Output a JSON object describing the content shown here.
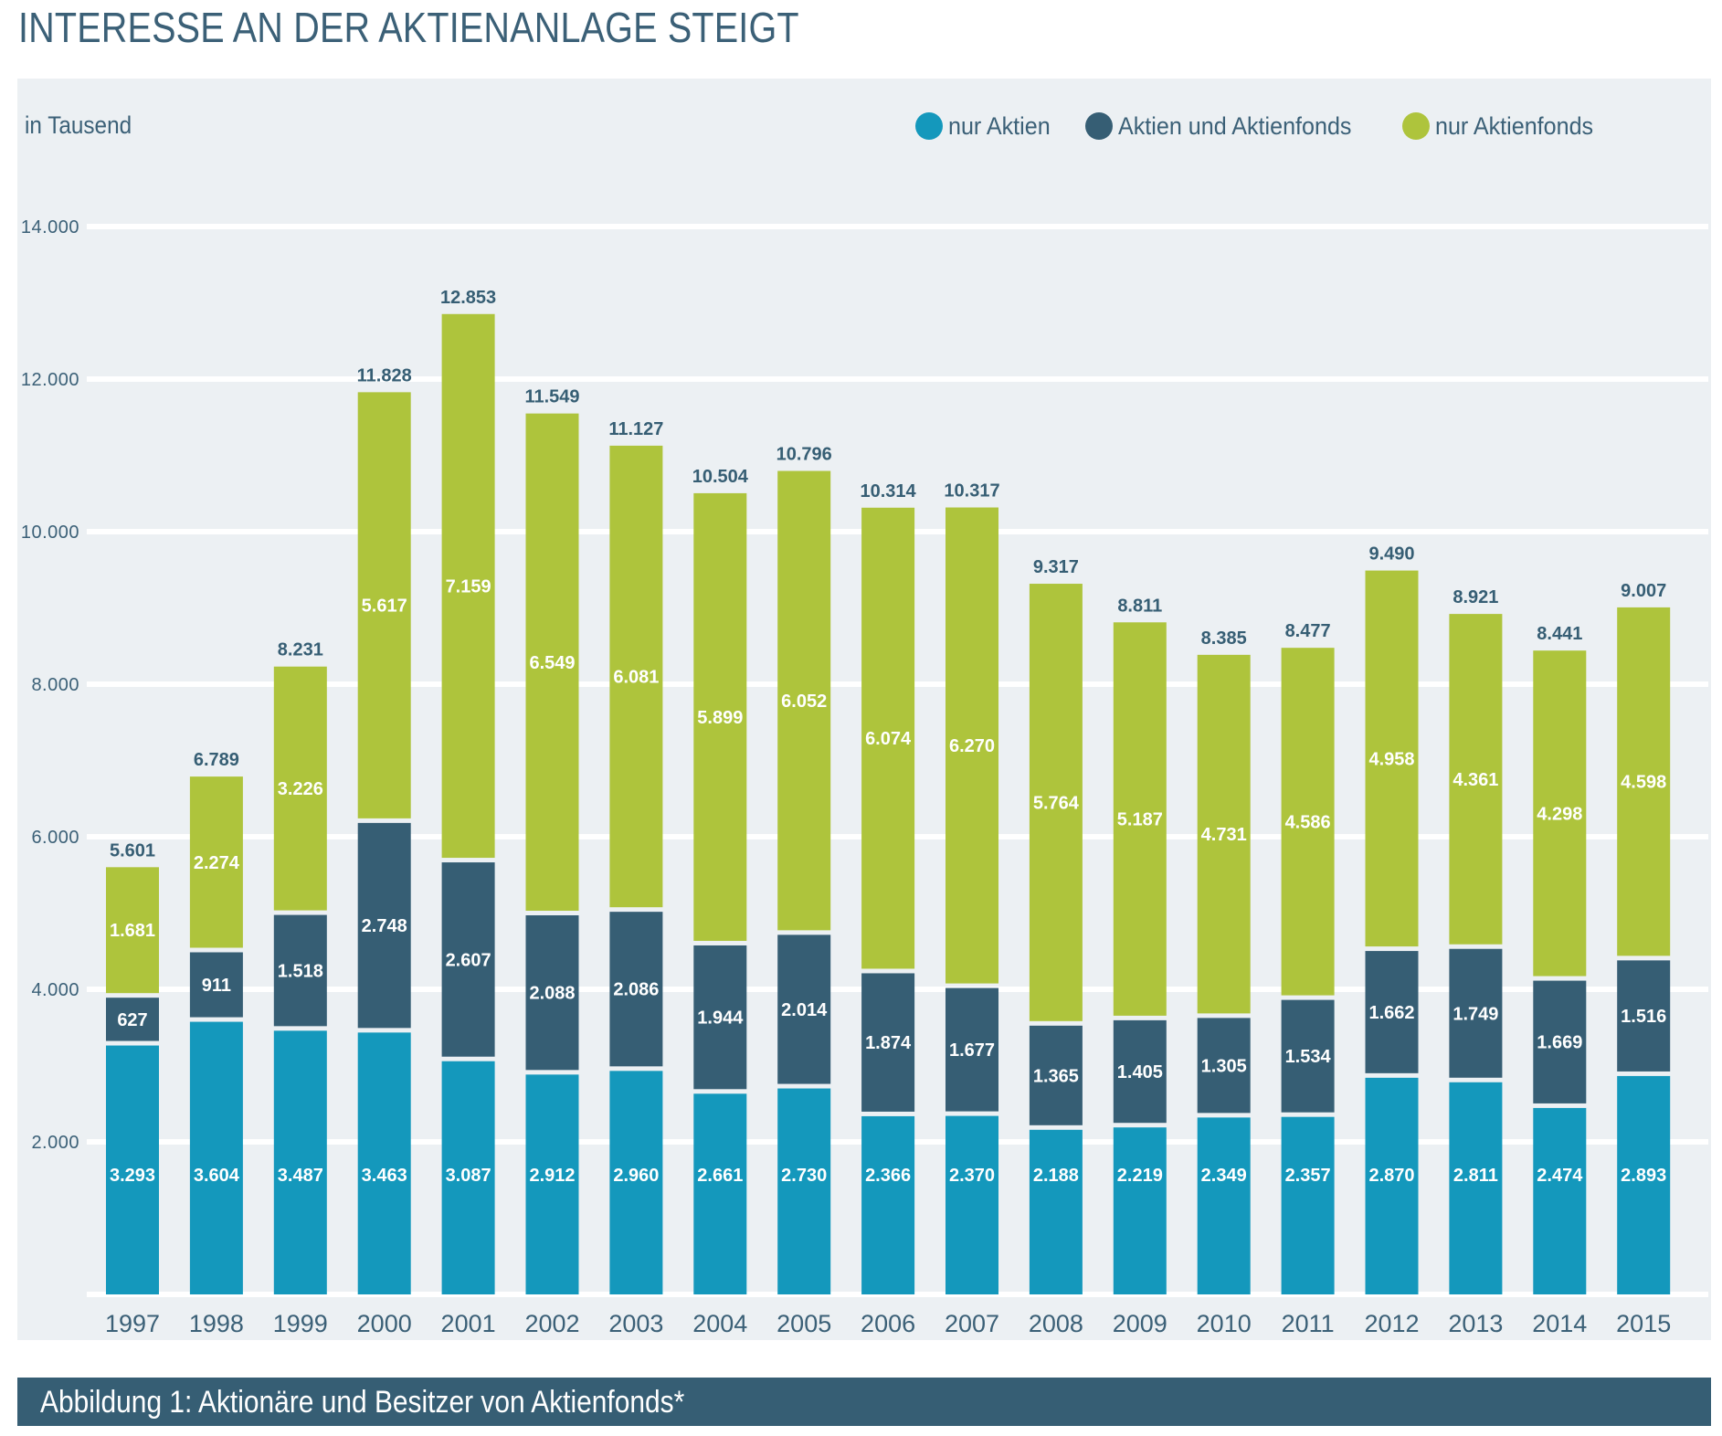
{
  "header": {
    "title": "INTERESSE AN DER AKTIENANLAGE STEIGT"
  },
  "caption": {
    "text": "Abbildung 1: Aktionäre und Besitzer von Aktienfonds*"
  },
  "colors": {
    "nur_aktien": "#1498BC",
    "aktien_und_aktienfonds": "#365E74",
    "nur_aktienfonds": "#AEC43C",
    "panel_background": "#ECF0F3",
    "text": "#365E74"
  },
  "chart_data": {
    "type": "bar",
    "stacked": true,
    "title": "INTERESSE AN DER AKTIENANLAGE STEIGT",
    "subtitle": "Abbildung 1: Aktionäre und Besitzer von Aktienfonds*",
    "ylabel": "in Tausend",
    "xlabel": "",
    "ylim": [
      0,
      14000
    ],
    "yticks": [
      2000,
      4000,
      6000,
      8000,
      10000,
      12000,
      14000
    ],
    "ytick_labels": [
      "2.000",
      "4.000",
      "6.000",
      "8.000",
      "10.000",
      "12.000",
      "14.000"
    ],
    "grid": true,
    "legend_position": "top-right",
    "categories": [
      "1997",
      "1998",
      "1999",
      "2000",
      "2001",
      "2002",
      "2003",
      "2004",
      "2005",
      "2006",
      "2007",
      "2008",
      "2009",
      "2010",
      "2011",
      "2012",
      "2013",
      "2014",
      "2015"
    ],
    "series": [
      {
        "name": "nur Aktien",
        "color": "#1498BC",
        "values": [
          3293,
          3604,
          3487,
          3463,
          3087,
          2912,
          2960,
          2661,
          2730,
          2366,
          2370,
          2188,
          2219,
          2349,
          2357,
          2870,
          2811,
          2474,
          2893
        ],
        "labels": [
          "3.293",
          "3.604",
          "3.487",
          "3.463",
          "3.087",
          "2.912",
          "2.960",
          "2.661",
          "2.730",
          "2.366",
          "2.370",
          "2.188",
          "2.219",
          "2.349",
          "2.357",
          "2.870",
          "2.811",
          "2.474",
          "2.893"
        ]
      },
      {
        "name": "Aktien und Aktienfonds",
        "color": "#365E74",
        "values": [
          627,
          911,
          1518,
          2748,
          2607,
          2088,
          2086,
          1944,
          2014,
          1874,
          1677,
          1365,
          1405,
          1305,
          1534,
          1662,
          1749,
          1669,
          1516
        ],
        "labels": [
          "627",
          "911",
          "1.518",
          "2.748",
          "2.607",
          "2.088",
          "2.086",
          "1.944",
          "2.014",
          "1.874",
          "1.677",
          "1.365",
          "1.405",
          "1.305",
          "1.534",
          "1.662",
          "1.749",
          "1.669",
          "1.516"
        ]
      },
      {
        "name": "nur Aktienfonds",
        "color": "#AEC43C",
        "values": [
          1681,
          2274,
          3226,
          5617,
          7159,
          6549,
          6081,
          5899,
          6052,
          6074,
          6270,
          5764,
          5187,
          4731,
          4586,
          4958,
          4361,
          4298,
          4598
        ],
        "labels": [
          "1.681",
          "2.274",
          "3.226",
          "5.617",
          "7.159",
          "6.549",
          "6.081",
          "5.899",
          "6.052",
          "6.074",
          "6.270",
          "5.764",
          "5.187",
          "4.731",
          "4.586",
          "4.958",
          "4.361",
          "4.298",
          "4.598"
        ]
      }
    ],
    "totals": [
      5601,
      6789,
      8231,
      11828,
      12853,
      11549,
      11127,
      10504,
      10796,
      10314,
      10317,
      9317,
      8811,
      8385,
      8477,
      9490,
      8921,
      8441,
      9007
    ],
    "total_labels": [
      "5.601",
      "6.789",
      "8.231",
      "11.828",
      "12.853",
      "11.549",
      "11.127",
      "10.504",
      "10.796",
      "10.314",
      "10.317",
      "9.317",
      "8.811",
      "8.385",
      "8.477",
      "9.490",
      "8.921",
      "8.441",
      "9.007"
    ]
  }
}
